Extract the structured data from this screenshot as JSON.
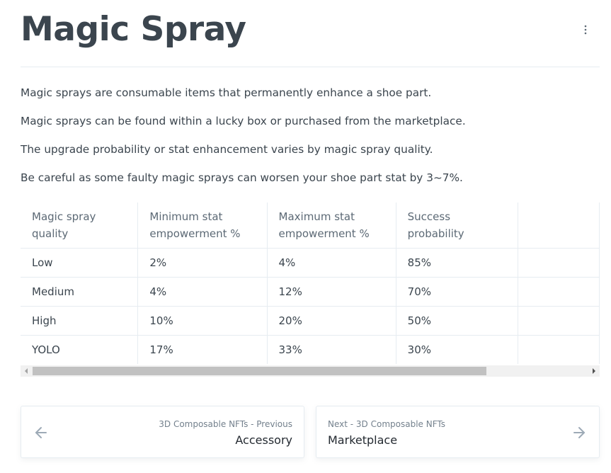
{
  "title": "Magic Spray",
  "paragraphs": [
    "Magic sprays are consumable items that permanently enhance a shoe part.",
    "Magic sprays can be found within a lucky box or purchased from the marketplace.",
    "The upgrade probability or stat enhancement varies by magic spray quality.",
    "Be careful as some faulty magic sprays can worsen your shoe part stat by 3~7%."
  ],
  "table": {
    "headers": [
      "Magic spray quality",
      "Minimum stat empowerment %",
      "Maximum stat empowerment %",
      "Success probability"
    ],
    "rows": [
      [
        "Low",
        "2%",
        "4%",
        "85%"
      ],
      [
        "Medium",
        "4%",
        "12%",
        "70%"
      ],
      [
        "High",
        "10%",
        "20%",
        "50%"
      ],
      [
        "YOLO",
        "17%",
        "33%",
        "30%"
      ]
    ]
  },
  "nav": {
    "prev_sub": "3D Composable NFTs - Previous",
    "prev_title": "Accessory",
    "next_sub": "Next - 3D Composable NFTs",
    "next_title": "Marketplace"
  },
  "icons": {
    "more": "more-vertical-icon",
    "prev": "arrow-left-icon",
    "next": "arrow-right-icon"
  }
}
